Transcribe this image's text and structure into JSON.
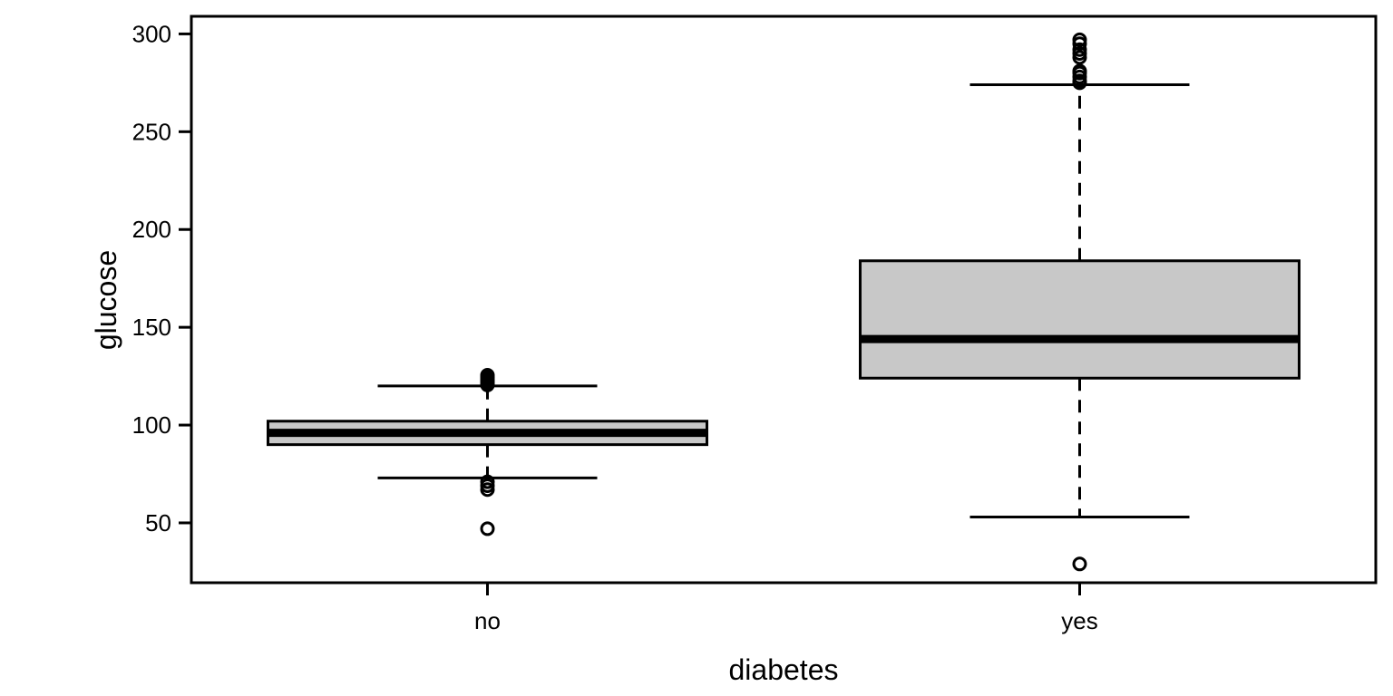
{
  "chart_data": {
    "type": "box",
    "xlabel": "diabetes",
    "ylabel": "glucose",
    "categories": [
      "no",
      "yes"
    ],
    "ylim": [
      19.4,
      309
    ],
    "yticks": [
      50,
      100,
      150,
      200,
      250,
      300
    ],
    "grid": false,
    "legend": "none",
    "box_fill": "#c8c8c8",
    "line_color": "#000000",
    "boxes": [
      {
        "category": "no",
        "whisker_low": 73,
        "q1": 90,
        "median": 96,
        "q3": 102,
        "whisker_high": 120,
        "outliers": [
          47,
          67,
          69,
          71,
          120.5,
          121.5,
          122.5,
          123.5,
          124.5,
          125.5
        ]
      },
      {
        "category": "yes",
        "whisker_low": 53,
        "q1": 124,
        "median": 144,
        "q3": 184,
        "whisker_high": 274,
        "outliers": [
          29,
          275,
          276,
          278,
          280,
          281,
          288,
          290,
          292,
          295,
          297
        ]
      }
    ]
  }
}
